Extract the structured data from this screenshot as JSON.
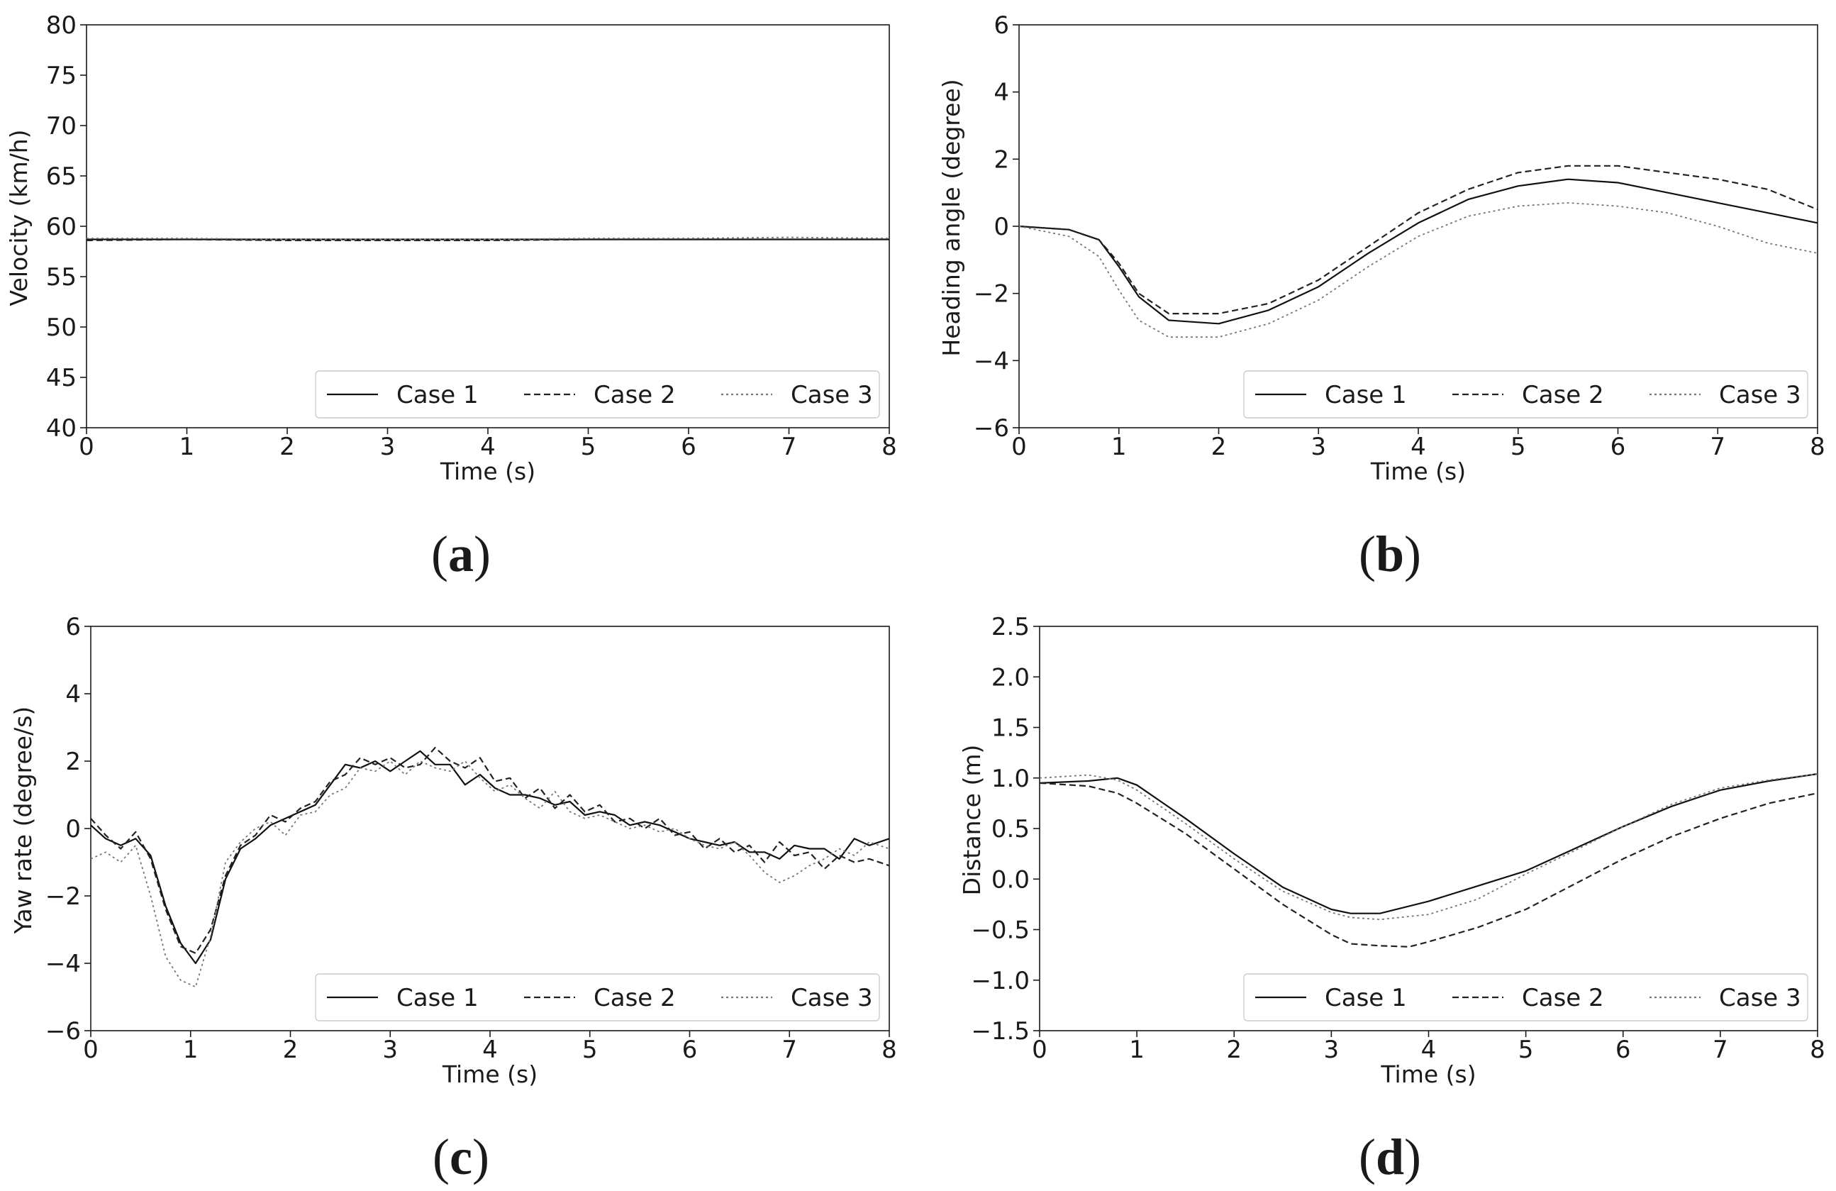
{
  "figure": {
    "colors": {
      "background": "#ffffff",
      "ink": "#1a1a1a",
      "series_1": "#111111",
      "series_2": "#222222",
      "series_3": "#777777"
    }
  },
  "chart_data": [
    {
      "id": "a",
      "type": "line",
      "caption": "a",
      "xlabel": "Time (s)",
      "ylabel": "Velocity (km/h)",
      "xlim": [
        0,
        8
      ],
      "ylim": [
        40,
        80
      ],
      "xticks": [
        0,
        1,
        2,
        3,
        4,
        5,
        6,
        7,
        8
      ],
      "yticks": [
        40,
        45,
        50,
        55,
        60,
        65,
        70,
        75,
        80
      ],
      "grid": false,
      "legend_position": "bottom-right",
      "series": [
        {
          "name": "Case 1",
          "style": "solid",
          "x": [
            0,
            1,
            2,
            3,
            4,
            5,
            6,
            7,
            8
          ],
          "y": [
            58.7,
            58.7,
            58.7,
            58.7,
            58.7,
            58.7,
            58.7,
            58.7,
            58.7
          ]
        },
        {
          "name": "Case 2",
          "style": "dashed",
          "x": [
            0,
            1,
            2,
            3,
            4,
            5,
            6,
            7,
            8
          ],
          "y": [
            58.6,
            58.7,
            58.6,
            58.6,
            58.6,
            58.7,
            58.7,
            58.7,
            58.7
          ]
        },
        {
          "name": "Case 3",
          "style": "dotted",
          "x": [
            0,
            1,
            2,
            3,
            4,
            5,
            6,
            7,
            8
          ],
          "y": [
            58.8,
            58.8,
            58.7,
            58.7,
            58.7,
            58.8,
            58.8,
            58.9,
            58.8
          ]
        }
      ]
    },
    {
      "id": "b",
      "type": "line",
      "caption": "b",
      "xlabel": "Time (s)",
      "ylabel": "Heading angle (degree)",
      "xlim": [
        0,
        8
      ],
      "ylim": [
        -6,
        6
      ],
      "xticks": [
        0,
        1,
        2,
        3,
        4,
        5,
        6,
        7,
        8
      ],
      "yticks": [
        -6,
        -4,
        -2,
        0,
        2,
        4,
        6
      ],
      "grid": false,
      "legend_position": "bottom-right",
      "series": [
        {
          "name": "Case 1",
          "style": "solid",
          "x": [
            0,
            0.5,
            0.8,
            1.0,
            1.2,
            1.5,
            2.0,
            2.5,
            3.0,
            3.5,
            4.0,
            4.5,
            5.0,
            5.5,
            6.0,
            6.5,
            7.0,
            7.5,
            8.0
          ],
          "y": [
            0,
            -0.1,
            -0.4,
            -1.2,
            -2.1,
            -2.8,
            -2.9,
            -2.5,
            -1.8,
            -0.8,
            0.1,
            0.8,
            1.2,
            1.4,
            1.3,
            1.0,
            0.7,
            0.4,
            0.1
          ]
        },
        {
          "name": "Case 2",
          "style": "dashed",
          "x": [
            0,
            0.5,
            0.8,
            1.0,
            1.2,
            1.5,
            2.0,
            2.5,
            3.0,
            3.5,
            4.0,
            4.5,
            5.0,
            5.5,
            6.0,
            6.5,
            7.0,
            7.5,
            8.0
          ],
          "y": [
            0,
            -0.1,
            -0.4,
            -1.1,
            -2.0,
            -2.6,
            -2.6,
            -2.3,
            -1.6,
            -0.6,
            0.4,
            1.1,
            1.6,
            1.8,
            1.8,
            1.6,
            1.4,
            1.1,
            0.5
          ]
        },
        {
          "name": "Case 3",
          "style": "dotted",
          "x": [
            0,
            0.5,
            0.8,
            1.0,
            1.2,
            1.5,
            2.0,
            2.5,
            3.0,
            3.5,
            4.0,
            4.5,
            5.0,
            5.5,
            6.0,
            6.5,
            7.0,
            7.5,
            8.0
          ],
          "y": [
            0,
            -0.3,
            -0.9,
            -1.9,
            -2.8,
            -3.3,
            -3.3,
            -2.9,
            -2.2,
            -1.2,
            -0.3,
            0.3,
            0.6,
            0.7,
            0.6,
            0.4,
            0.0,
            -0.5,
            -0.8
          ]
        }
      ]
    },
    {
      "id": "c",
      "type": "line",
      "caption": "c",
      "xlabel": "Time (s)",
      "ylabel": "Yaw rate (degree/s)",
      "xlim": [
        0,
        8
      ],
      "ylim": [
        -6,
        6
      ],
      "xticks": [
        0,
        1,
        2,
        3,
        4,
        5,
        6,
        7,
        8
      ],
      "yticks": [
        -6,
        -4,
        -2,
        0,
        2,
        4,
        6
      ],
      "grid": false,
      "legend_position": "bottom-right",
      "series": [
        {
          "name": "Case 1",
          "style": "solid",
          "x": [
            0,
            0.15,
            0.3,
            0.45,
            0.6,
            0.75,
            0.9,
            1.05,
            1.2,
            1.35,
            1.5,
            1.65,
            1.8,
            1.95,
            2.1,
            2.25,
            2.4,
            2.55,
            2.7,
            2.85,
            3.0,
            3.15,
            3.3,
            3.45,
            3.6,
            3.75,
            3.9,
            4.05,
            4.2,
            4.35,
            4.5,
            4.65,
            4.8,
            4.95,
            5.1,
            5.25,
            5.4,
            5.55,
            5.7,
            5.85,
            6.0,
            6.15,
            6.3,
            6.45,
            6.6,
            6.75,
            6.9,
            7.05,
            7.2,
            7.35,
            7.5,
            7.65,
            7.8,
            8.0
          ],
          "y": [
            0.1,
            -0.3,
            -0.5,
            -0.3,
            -0.8,
            -2.3,
            -3.4,
            -4.0,
            -3.3,
            -1.5,
            -0.6,
            -0.3,
            0.1,
            0.3,
            0.5,
            0.7,
            1.3,
            1.9,
            1.8,
            2.0,
            1.7,
            2.0,
            2.3,
            1.9,
            1.9,
            1.3,
            1.6,
            1.2,
            1.0,
            1.0,
            0.9,
            0.7,
            0.8,
            0.4,
            0.5,
            0.4,
            0.1,
            0.2,
            0.1,
            -0.1,
            -0.3,
            -0.4,
            -0.5,
            -0.4,
            -0.7,
            -0.7,
            -0.9,
            -0.5,
            -0.6,
            -0.6,
            -0.9,
            -0.3,
            -0.5,
            -0.3
          ]
        },
        {
          "name": "Case 2",
          "style": "dashed",
          "x": [
            0,
            0.15,
            0.3,
            0.45,
            0.6,
            0.75,
            0.9,
            1.05,
            1.2,
            1.35,
            1.5,
            1.65,
            1.8,
            1.95,
            2.1,
            2.25,
            2.4,
            2.55,
            2.7,
            2.85,
            3.0,
            3.15,
            3.3,
            3.45,
            3.6,
            3.75,
            3.9,
            4.05,
            4.2,
            4.35,
            4.5,
            4.65,
            4.8,
            4.95,
            5.1,
            5.25,
            5.4,
            5.55,
            5.7,
            5.85,
            6.0,
            6.15,
            6.3,
            6.45,
            6.6,
            6.75,
            6.9,
            7.05,
            7.2,
            7.35,
            7.5,
            7.65,
            7.8,
            8.0
          ],
          "y": [
            0.3,
            -0.2,
            -0.6,
            -0.1,
            -0.9,
            -2.4,
            -3.5,
            -3.7,
            -3.0,
            -1.4,
            -0.5,
            -0.2,
            0.4,
            0.2,
            0.6,
            0.8,
            1.4,
            1.6,
            2.1,
            1.9,
            2.1,
            1.8,
            1.9,
            2.4,
            2.0,
            1.8,
            2.1,
            1.4,
            1.5,
            0.9,
            1.2,
            0.6,
            1.0,
            0.5,
            0.7,
            0.2,
            0.3,
            0.0,
            0.3,
            -0.2,
            -0.1,
            -0.6,
            -0.3,
            -0.7,
            -0.5,
            -1.0,
            -0.4,
            -0.8,
            -0.7,
            -1.2,
            -0.8,
            -1.0,
            -0.9,
            -1.1
          ]
        },
        {
          "name": "Case 3",
          "style": "dotted",
          "x": [
            0,
            0.15,
            0.3,
            0.45,
            0.6,
            0.75,
            0.9,
            1.05,
            1.2,
            1.35,
            1.5,
            1.65,
            1.8,
            1.95,
            2.1,
            2.25,
            2.4,
            2.55,
            2.7,
            2.85,
            3.0,
            3.15,
            3.3,
            3.45,
            3.6,
            3.75,
            3.9,
            4.05,
            4.2,
            4.35,
            4.5,
            4.65,
            4.8,
            4.95,
            5.1,
            5.25,
            5.4,
            5.55,
            5.7,
            5.85,
            6.0,
            6.15,
            6.3,
            6.45,
            6.6,
            6.75,
            6.9,
            7.05,
            7.2,
            7.35,
            7.5,
            7.65,
            7.8,
            8.0
          ],
          "y": [
            -0.9,
            -0.7,
            -1.0,
            -0.5,
            -2.0,
            -3.8,
            -4.5,
            -4.7,
            -3.2,
            -1.0,
            -0.4,
            0.0,
            0.2,
            -0.2,
            0.4,
            0.5,
            1.0,
            1.2,
            1.8,
            1.7,
            2.0,
            1.6,
            2.0,
            1.8,
            1.7,
            2.0,
            1.5,
            1.1,
            1.3,
            0.9,
            0.6,
            1.1,
            0.5,
            0.3,
            0.4,
            0.2,
            0.0,
            0.1,
            -0.1,
            0.0,
            -0.3,
            -0.5,
            -0.6,
            -0.4,
            -0.8,
            -1.3,
            -1.6,
            -1.4,
            -1.1,
            -0.9,
            -0.6,
            -0.8,
            -0.4,
            -0.6
          ]
        }
      ]
    },
    {
      "id": "d",
      "type": "line",
      "caption": "d",
      "xlabel": "Time (s)",
      "ylabel": "Distance (m)",
      "xlim": [
        0,
        8
      ],
      "ylim": [
        -1.5,
        2.5
      ],
      "xticks": [
        0,
        1,
        2,
        3,
        4,
        5,
        6,
        7,
        8
      ],
      "yticks": [
        -1.5,
        -1.0,
        -0.5,
        0.0,
        0.5,
        1.0,
        1.5,
        2.0,
        2.5
      ],
      "yticklabels": [
        "−1.5",
        "−1.0",
        "−0.5",
        "0.0",
        "0.5",
        "1.0",
        "1.5",
        "2.0",
        "2.5"
      ],
      "grid": false,
      "legend_position": "bottom-right",
      "series": [
        {
          "name": "Case 1",
          "style": "solid",
          "x": [
            0,
            0.5,
            0.8,
            1.0,
            1.5,
            2.0,
            2.5,
            3.0,
            3.2,
            3.5,
            4.0,
            4.5,
            5.0,
            5.5,
            6.0,
            6.5,
            7.0,
            7.5,
            8.0
          ],
          "y": [
            0.95,
            0.97,
            1.0,
            0.93,
            0.6,
            0.25,
            -0.08,
            -0.3,
            -0.34,
            -0.34,
            -0.22,
            -0.07,
            0.08,
            0.3,
            0.52,
            0.72,
            0.88,
            0.97,
            1.04
          ]
        },
        {
          "name": "Case 2",
          "style": "dashed",
          "x": [
            0,
            0.5,
            0.8,
            1.0,
            1.5,
            2.0,
            2.5,
            3.0,
            3.2,
            3.5,
            3.8,
            4.0,
            4.5,
            5.0,
            5.5,
            6.0,
            6.5,
            7.0,
            7.5,
            8.0
          ],
          "y": [
            0.95,
            0.92,
            0.85,
            0.75,
            0.45,
            0.1,
            -0.25,
            -0.55,
            -0.64,
            -0.66,
            -0.67,
            -0.62,
            -0.48,
            -0.3,
            -0.05,
            0.2,
            0.42,
            0.6,
            0.75,
            0.85
          ]
        },
        {
          "name": "Case 3",
          "style": "dotted",
          "x": [
            0,
            0.5,
            0.8,
            1.0,
            1.5,
            2.0,
            2.5,
            3.0,
            3.2,
            3.5,
            4.0,
            4.5,
            5.0,
            5.5,
            6.0,
            6.5,
            7.0,
            7.5,
            8.0
          ],
          "y": [
            1.0,
            1.03,
            0.98,
            0.88,
            0.55,
            0.2,
            -0.12,
            -0.33,
            -0.38,
            -0.4,
            -0.35,
            -0.2,
            0.05,
            0.28,
            0.52,
            0.74,
            0.9,
            0.98,
            1.04
          ]
        }
      ]
    }
  ]
}
